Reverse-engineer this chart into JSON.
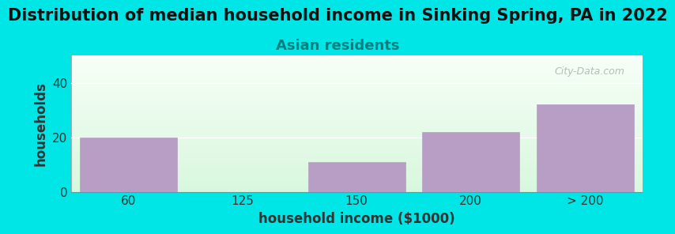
{
  "title": "Distribution of median household income in Sinking Spring, PA in 2022",
  "subtitle": "Asian residents",
  "xlabel": "household income ($1000)",
  "ylabel": "households",
  "categories": [
    "60",
    "125",
    "150",
    "200",
    "> 200"
  ],
  "values": [
    20,
    0,
    11,
    22,
    32
  ],
  "bar_color": "#b89ec4",
  "bar_edgecolor": "#b89ec4",
  "background_color": "#00e5e5",
  "ylim": [
    0,
    50
  ],
  "yticks": [
    0,
    20,
    40
  ],
  "title_fontsize": 15,
  "subtitle_fontsize": 13,
  "subtitle_color": "#008080",
  "axis_label_fontsize": 12,
  "tick_fontsize": 11,
  "watermark": "City-Data.com"
}
